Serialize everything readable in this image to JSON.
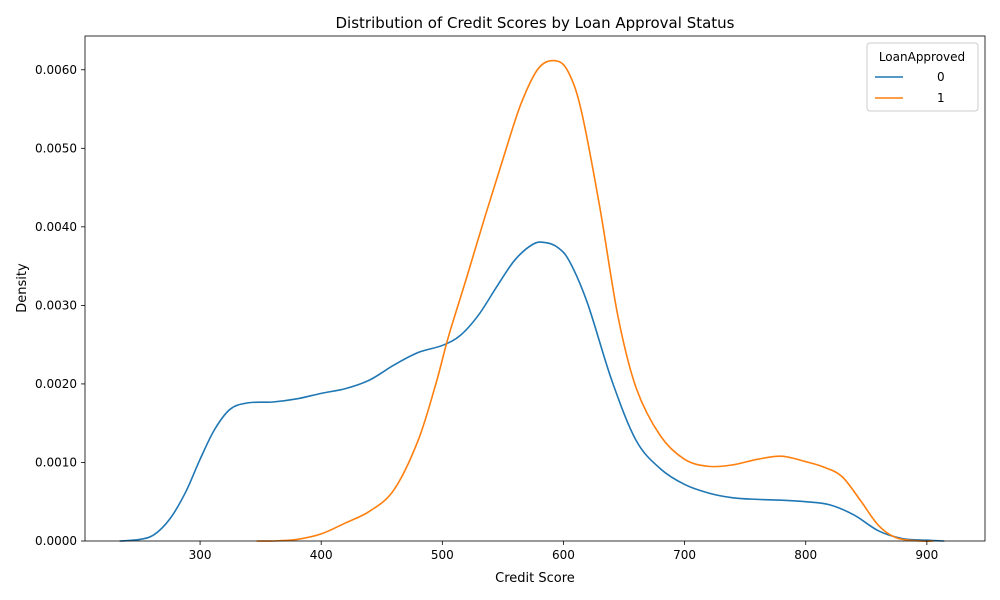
{
  "chart_data": {
    "type": "line",
    "title": "Distribution of Credit Scores by Loan Approval Status",
    "xlabel": "Credit Score",
    "ylabel": "Density",
    "xlim": [
      205,
      948
    ],
    "ylim": [
      0,
      0.00643
    ],
    "xticks": [
      300,
      400,
      500,
      600,
      700,
      800,
      900
    ],
    "yticks": [
      0,
      0.001,
      0.002,
      0.003,
      0.004,
      0.005,
      0.006
    ],
    "yticklabels": [
      "0.0000",
      "0.0010",
      "0.0020",
      "0.0030",
      "0.0040",
      "0.0050",
      "0.0060"
    ],
    "grid": false,
    "legend": {
      "title": "LoanApproved",
      "placement": "top-right"
    },
    "series": [
      {
        "name": "0",
        "color": "#1f77b4",
        "x": [
          234,
          250,
          262,
          275,
          288,
          300,
          312,
          325,
          340,
          360,
          380,
          400,
          420,
          440,
          460,
          480,
          500,
          515,
          530,
          545,
          560,
          575,
          585,
          595,
          605,
          620,
          640,
          660,
          680,
          700,
          720,
          740,
          760,
          780,
          800,
          820,
          840,
          860,
          880,
          900,
          914
        ],
        "y": [
          0,
          2e-05,
          8e-05,
          0.00028,
          0.00062,
          0.00104,
          0.00142,
          0.00168,
          0.00176,
          0.00177,
          0.00181,
          0.00188,
          0.00194,
          0.00205,
          0.00224,
          0.0024,
          0.00249,
          0.00262,
          0.00288,
          0.00324,
          0.00358,
          0.00378,
          0.0038,
          0.00374,
          0.00356,
          0.00302,
          0.00204,
          0.00128,
          0.00092,
          0.00072,
          0.00061,
          0.00055,
          0.00053,
          0.00052,
          0.0005,
          0.00046,
          0.00033,
          0.00013,
          3e-05,
          1e-05,
          0
        ]
      },
      {
        "name": "1",
        "color": "#ff7f0e",
        "x": [
          347,
          360,
          380,
          400,
          420,
          440,
          460,
          480,
          495,
          505,
          520,
          535,
          550,
          565,
          580,
          595,
          605,
          615,
          630,
          645,
          660,
          680,
          700,
          720,
          740,
          760,
          780,
          800,
          815,
          830,
          845,
          860,
          875,
          895,
          905
        ],
        "y": [
          0,
          0,
          2e-05,
          9e-05,
          0.00023,
          0.00038,
          0.00065,
          0.00128,
          0.00202,
          0.0026,
          0.00335,
          0.00412,
          0.00486,
          0.00557,
          0.00603,
          0.00611,
          0.00594,
          0.00546,
          0.00425,
          0.00286,
          0.00195,
          0.00134,
          0.00104,
          0.00095,
          0.00097,
          0.00104,
          0.00108,
          0.00101,
          0.00094,
          0.00082,
          0.00052,
          0.0002,
          4e-05,
          0,
          0
        ]
      }
    ]
  }
}
